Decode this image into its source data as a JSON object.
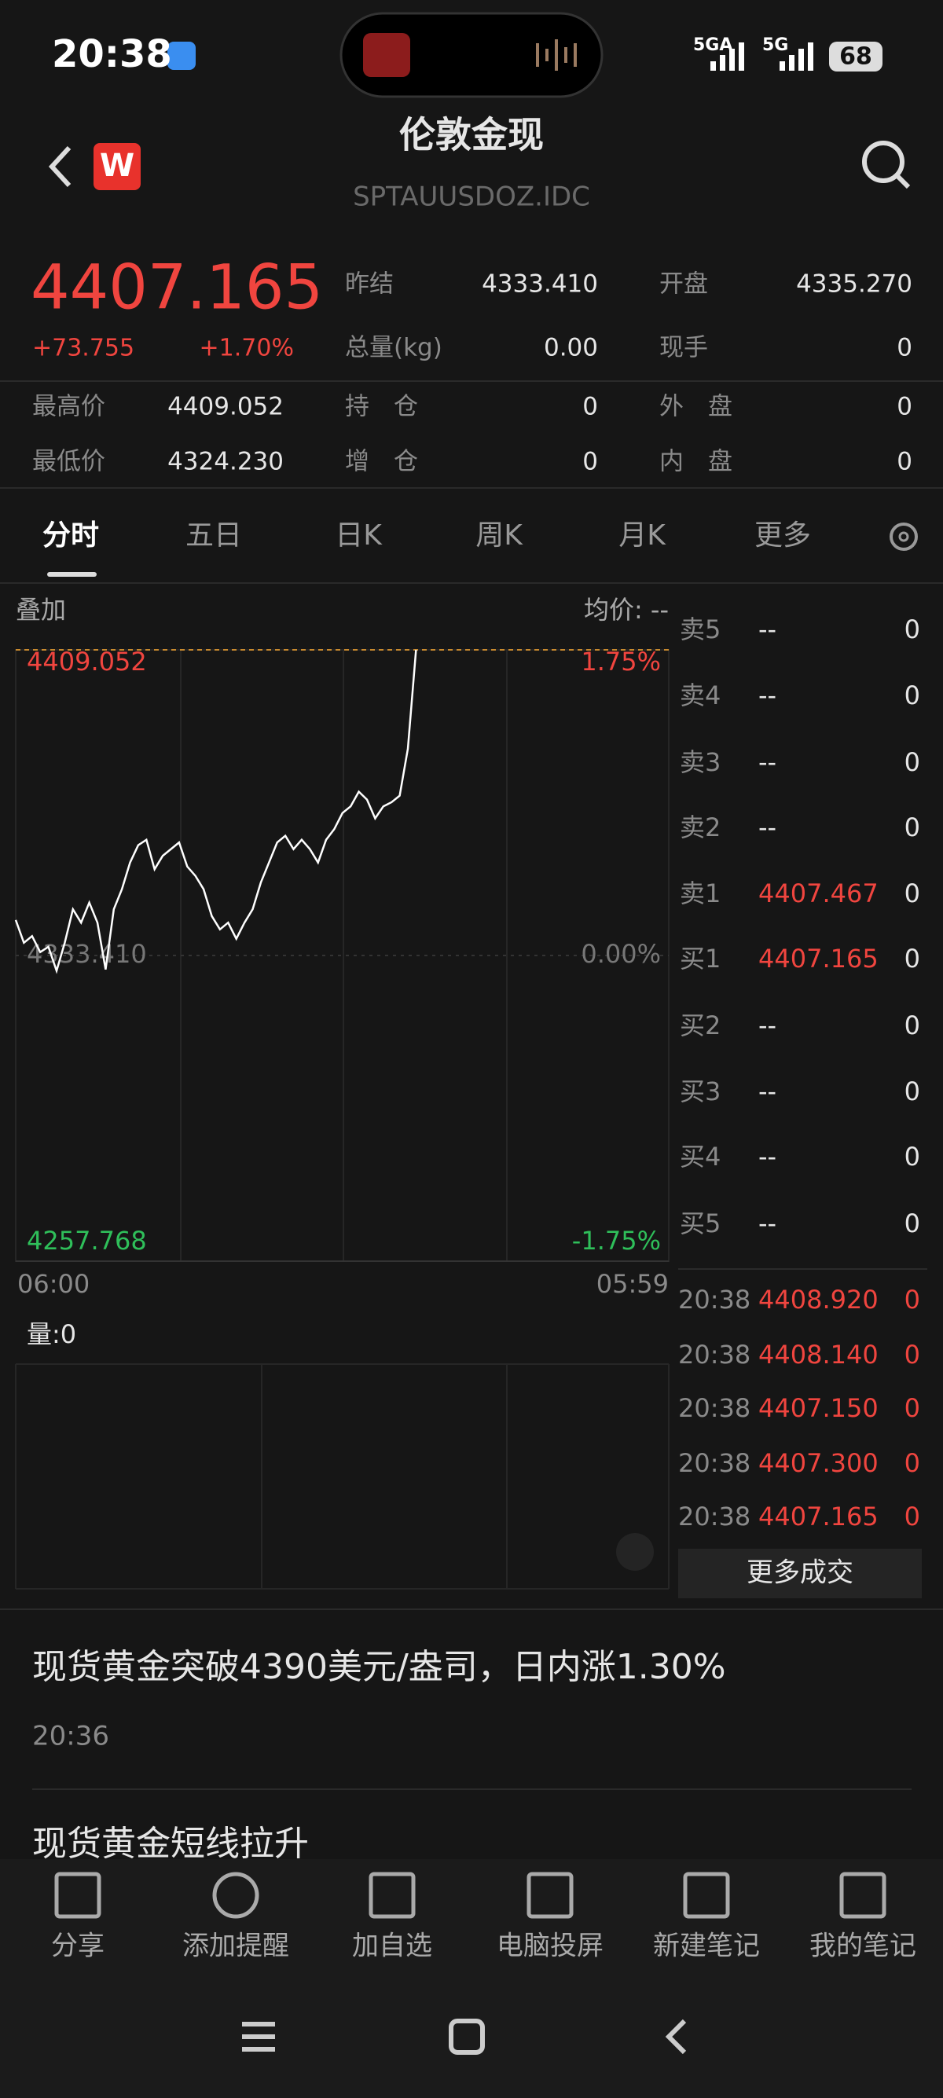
{
  "status_bar": {
    "time": "20:38",
    "network_1": "5GA",
    "network_2": "5G",
    "battery": "68"
  },
  "header": {
    "logo": "W",
    "title": "伦敦金现",
    "code": "SPTAUUSDOZ.IDC"
  },
  "quote": {
    "price": "4407.165",
    "change": "+73.755",
    "change_pct": "+1.70%",
    "stats": [
      [
        "昨结",
        "4333.410"
      ],
      [
        "开盘",
        "4335.270"
      ],
      [
        "总量(kg)",
        "0.00"
      ],
      [
        "现手",
        "0"
      ],
      [
        "最高价",
        "4409.052"
      ],
      [
        "持　仓",
        "0"
      ],
      [
        "外　盘",
        "0"
      ],
      [
        "最低价",
        "4324.230"
      ],
      [
        "增　仓",
        "0"
      ],
      [
        "内　盘",
        "0"
      ]
    ]
  },
  "tabs": [
    "分时",
    "五日",
    "日K",
    "周K",
    "月K",
    "更多"
  ],
  "chart_toolbar": {
    "overlay": "叠加",
    "avg_price": "均价: --"
  },
  "chart_data": {
    "type": "line",
    "color": "#ffffff",
    "ylim": [
      4257.768,
      4409.052
    ],
    "yticks": [
      4257.768,
      {
        "value": 4333.41,
        "label": "4333.410"
      },
      4409.052
    ],
    "y2lim": [
      -1.75,
      1.75
    ],
    "y2ticks": [
      {
        "value": -1.75,
        "label": "-1.75%"
      },
      {
        "value": 0,
        "label": "0.00%"
      },
      {
        "value": 1.75,
        "label": "1.75%"
      }
    ],
    "xticks": [
      "06:00",
      "05:59"
    ],
    "values": [
      4342.19,
      4336.56,
      4338.22,
      4334.24,
      4335.57,
      4329.61,
      4336.56,
      4344.84,
      4341.53,
      4346.49,
      4341.53,
      4329.94,
      4344.84,
      4349.8,
      4356.42,
      4360.72,
      4362.05,
      4354.77,
      4358.08,
      4359.73,
      4361.39,
      4355.43,
      4353.11,
      4349.8,
      4343.18,
      4339.87,
      4341.53,
      4337.55,
      4341.53,
      4344.84,
      4351.46,
      4356.42,
      4361.39,
      4363.04,
      4359.73,
      4362.05,
      4359.73,
      4356.42,
      4362.05,
      4364.7,
      4368.67,
      4370.32,
      4373.96,
      4371.98,
      4367.34,
      4370.32,
      4371.32,
      4372.97,
      4384.56,
      4409.05
    ],
    "volume_label": "量:0"
  },
  "order_book": {
    "rows": [
      [
        "卖5",
        "--",
        "0"
      ],
      [
        "卖4",
        "--",
        "0"
      ],
      [
        "卖3",
        "--",
        "0"
      ],
      [
        "卖2",
        "--",
        "0"
      ],
      [
        "卖1",
        "4407.467",
        "0"
      ],
      [
        "买1",
        "4407.165",
        "0"
      ],
      [
        "买2",
        "--",
        "0"
      ],
      [
        "买3",
        "--",
        "0"
      ],
      [
        "买4",
        "--",
        "0"
      ],
      [
        "买5",
        "--",
        "0"
      ]
    ]
  },
  "trades": {
    "rows": [
      [
        "20:38",
        "4408.920",
        "0"
      ],
      [
        "20:38",
        "4408.140",
        "0"
      ],
      [
        "20:38",
        "4407.150",
        "0"
      ],
      [
        "20:38",
        "4407.300",
        "0"
      ],
      [
        "20:38",
        "4407.165",
        "0"
      ]
    ],
    "more": "更多成交"
  },
  "news": [
    {
      "headline": "现货黄金突破4390美元/盎司，日内涨1.30%",
      "time": "20:36"
    },
    {
      "headline": "现货黄金短线拉升"
    }
  ],
  "toolbar": [
    "分享",
    "添加提醒",
    "加自选",
    "电脑投屏",
    "新建笔记",
    "我的笔记"
  ]
}
